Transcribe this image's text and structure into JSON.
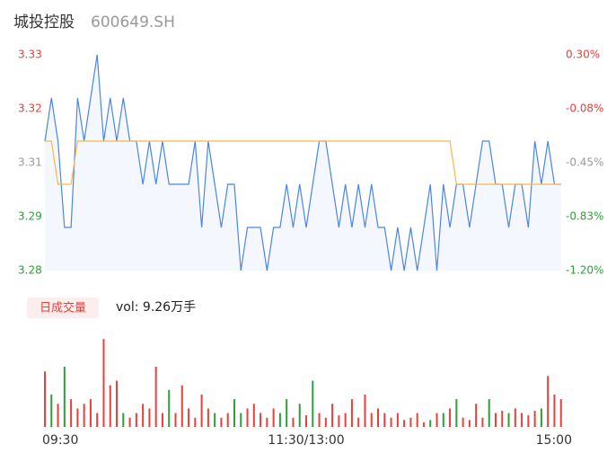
{
  "header": {
    "name": "城投控股",
    "code": "600649.SH"
  },
  "chart_data": [
    {
      "type": "line",
      "xlim": [
        0,
        240
      ],
      "ylim": [
        3.28,
        3.33
      ],
      "yticks": [
        {
          "value": 3.33,
          "label": "3.33"
        },
        {
          "value": 3.3175,
          "label": "3.32"
        },
        {
          "value": 3.305,
          "label": "3.31"
        },
        {
          "value": 3.2925,
          "label": "3.29"
        },
        {
          "value": 3.28,
          "label": "3.28"
        }
      ],
      "ytick_colors": [
        "#e8403a",
        "#e8403a",
        "#999999",
        "#2e9e3a",
        "#2e9e3a"
      ],
      "y2lim": [
        -1.2,
        0.3
      ],
      "y2ticks": [
        {
          "value": 0.3,
          "label": "0.30%"
        },
        {
          "value": -0.075,
          "label": "-0.08%"
        },
        {
          "value": -0.45,
          "label": "-0.45%"
        },
        {
          "value": -0.825,
          "label": "-0.83%"
        },
        {
          "value": -1.2,
          "label": "-1.20%"
        }
      ],
      "y2tick_colors": [
        "#e8403a",
        "#e8403a",
        "#999999",
        "#2e9e3a",
        "#2e9e3a"
      ],
      "x": [
        0,
        3,
        6,
        9,
        12,
        15,
        18,
        21,
        24,
        27,
        30,
        33,
        36,
        39,
        42,
        45,
        48,
        51,
        54,
        57,
        60,
        63,
        66,
        69,
        72,
        75,
        78,
        81,
        84,
        87,
        90,
        93,
        96,
        99,
        102,
        105,
        108,
        111,
        114,
        117,
        120,
        123,
        126,
        129,
        132,
        135,
        138,
        141,
        144,
        147,
        150,
        153,
        156,
        159,
        162,
        165,
        168,
        171,
        174,
        177,
        180,
        183,
        186,
        189,
        192,
        195,
        198,
        201,
        204,
        207,
        210,
        213,
        216,
        219,
        222,
        225,
        228,
        231,
        234,
        237
      ],
      "series": [
        {
          "color": "#4a86e8",
          "fill": "#f4f7fd",
          "values": [
            3.31,
            3.32,
            3.31,
            3.29,
            3.29,
            3.32,
            3.31,
            3.32,
            3.33,
            3.31,
            3.32,
            3.31,
            3.32,
            3.31,
            3.31,
            3.3,
            3.31,
            3.3,
            3.31,
            3.3,
            3.3,
            3.3,
            3.3,
            3.31,
            3.29,
            3.31,
            3.3,
            3.29,
            3.3,
            3.3,
            3.28,
            3.29,
            3.29,
            3.29,
            3.28,
            3.29,
            3.29,
            3.3,
            3.29,
            3.3,
            3.29,
            3.3,
            3.31,
            3.31,
            3.3,
            3.29,
            3.3,
            3.29,
            3.3,
            3.29,
            3.3,
            3.29,
            3.29,
            3.28,
            3.29,
            3.28,
            3.29,
            3.28,
            3.29,
            3.3,
            3.28,
            3.3,
            3.29,
            3.3,
            3.3,
            3.29,
            3.3,
            3.31,
            3.31,
            3.3,
            3.3,
            3.29,
            3.3,
            3.3,
            3.29,
            3.31,
            3.3,
            3.31,
            3.3,
            3.3
          ]
        },
        {
          "color": "#f5b94a",
          "values": [
            3.31,
            3.31,
            3.3,
            3.3,
            3.3,
            3.31,
            3.31,
            3.31,
            3.31,
            3.31,
            3.31,
            3.31,
            3.31,
            3.31,
            3.31,
            3.31,
            3.31,
            3.31,
            3.31,
            3.31,
            3.31,
            3.31,
            3.31,
            3.31,
            3.31,
            3.31,
            3.31,
            3.31,
            3.31,
            3.31,
            3.31,
            3.31,
            3.31,
            3.31,
            3.31,
            3.31,
            3.31,
            3.31,
            3.31,
            3.31,
            3.31,
            3.31,
            3.31,
            3.31,
            3.31,
            3.31,
            3.31,
            3.31,
            3.31,
            3.31,
            3.31,
            3.31,
            3.31,
            3.31,
            3.31,
            3.31,
            3.31,
            3.31,
            3.31,
            3.31,
            3.31,
            3.31,
            3.31,
            3.3,
            3.3,
            3.3,
            3.3,
            3.3,
            3.3,
            3.3,
            3.3,
            3.3,
            3.3,
            3.3,
            3.3,
            3.3,
            3.3,
            3.3,
            3.3,
            3.3
          ]
        }
      ]
    },
    {
      "type": "bar",
      "title": "日成交量",
      "subtitle": "vol: 9.26万手",
      "xlim": [
        0,
        240
      ],
      "ylim": [
        0,
        2000
      ],
      "xticks": [
        {
          "value": 0,
          "label": "09:30"
        },
        {
          "value": 120,
          "label": "11:30/13:00"
        },
        {
          "value": 240,
          "label": "15:00"
        }
      ],
      "x": [
        0,
        3,
        6,
        9,
        12,
        15,
        18,
        21,
        24,
        27,
        30,
        33,
        36,
        39,
        42,
        45,
        48,
        51,
        54,
        57,
        60,
        63,
        66,
        69,
        72,
        75,
        78,
        81,
        84,
        87,
        90,
        93,
        96,
        99,
        102,
        105,
        108,
        111,
        114,
        117,
        120,
        123,
        126,
        129,
        132,
        135,
        138,
        141,
        144,
        147,
        150,
        153,
        156,
        159,
        162,
        165,
        168,
        171,
        174,
        177,
        180,
        183,
        186,
        189,
        192,
        195,
        198,
        201,
        204,
        207,
        210,
        213,
        216,
        219,
        222,
        225,
        228,
        231,
        234,
        237
      ],
      "values": [
        1200,
        700,
        500,
        1300,
        600,
        400,
        500,
        600,
        300,
        1900,
        900,
        1000,
        300,
        200,
        300,
        500,
        400,
        1300,
        300,
        800,
        300,
        900,
        400,
        200,
        700,
        400,
        300,
        200,
        300,
        600,
        300,
        400,
        500,
        300,
        200,
        400,
        300,
        600,
        200,
        500,
        250,
        1000,
        300,
        200,
        500,
        250,
        300,
        600,
        200,
        700,
        300,
        400,
        300,
        200,
        300,
        150,
        200,
        300,
        100,
        150,
        300,
        300,
        400,
        600,
        200,
        150,
        500,
        200,
        600,
        300,
        350,
        300,
        400,
        300,
        250,
        350,
        400,
        1100,
        700,
        600
      ],
      "colors": [
        "#e8403a",
        "#2e9e3a",
        "#e8403a",
        "#2e9e3a",
        "#e8403a",
        "#e8403a",
        "#e8403a",
        "#e8403a",
        "#e8403a",
        "#e8403a",
        "#e8403a",
        "#e8403a",
        "#2e9e3a",
        "#e8403a",
        "#e8403a",
        "#e8403a",
        "#e8403a",
        "#e8403a",
        "#e8403a",
        "#2e9e3a",
        "#e8403a",
        "#e8403a",
        "#e8403a",
        "#e8403a",
        "#e8403a",
        "#e8403a",
        "#2e9e3a",
        "#e8403a",
        "#e8403a",
        "#2e9e3a",
        "#2e9e3a",
        "#e8403a",
        "#e8403a",
        "#e8403a",
        "#e8403a",
        "#e8403a",
        "#2e9e3a",
        "#2e9e3a",
        "#e8403a",
        "#2e9e3a",
        "#e8403a",
        "#2e9e3a",
        "#e8403a",
        "#e8403a",
        "#e8403a",
        "#e8403a",
        "#e8403a",
        "#e8403a",
        "#e8403a",
        "#e8403a",
        "#e8403a",
        "#e8403a",
        "#e8403a",
        "#e8403a",
        "#e8403a",
        "#e8403a",
        "#e8403a",
        "#e8403a",
        "#e8403a",
        "#2e9e3a",
        "#e8403a",
        "#2e9e3a",
        "#e8403a",
        "#2e9e3a",
        "#e8403a",
        "#e8403a",
        "#e8403a",
        "#e8403a",
        "#2e9e3a",
        "#e8403a",
        "#e8403a",
        "#2e9e3a",
        "#e8403a",
        "#e8403a",
        "#e8403a",
        "#e8403a",
        "#2e9e3a",
        "#e8403a",
        "#e8403a",
        "#e8403a"
      ]
    }
  ]
}
